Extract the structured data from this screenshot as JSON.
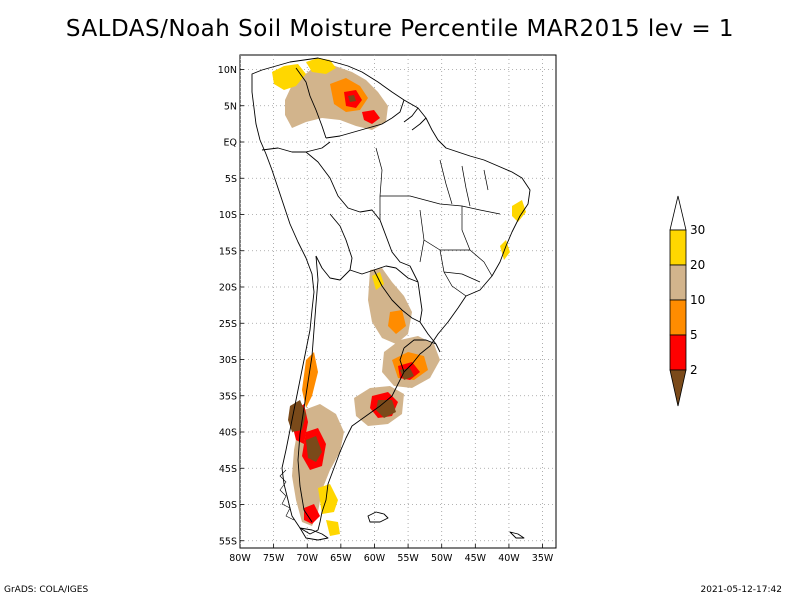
{
  "title": "SALDAS/Noah Soil Moisture Percentile MAR2015 lev = 1",
  "footer": {
    "left": "GrADS: COLA/IGES",
    "right": "2021-05-12-17:42"
  },
  "map": {
    "lon_range": [
      -80,
      -33
    ],
    "lat_range": [
      -56,
      12
    ],
    "lon_ticks": [
      {
        "value": -80,
        "label": "80W"
      },
      {
        "value": -75,
        "label": "75W"
      },
      {
        "value": -70,
        "label": "70W"
      },
      {
        "value": -65,
        "label": "65W"
      },
      {
        "value": -60,
        "label": "60W"
      },
      {
        "value": -55,
        "label": "55W"
      },
      {
        "value": -50,
        "label": "50W"
      },
      {
        "value": -45,
        "label": "45W"
      },
      {
        "value": -40,
        "label": "40W"
      },
      {
        "value": -35,
        "label": "35W"
      }
    ],
    "lat_ticks": [
      {
        "value": 10,
        "label": "10N"
      },
      {
        "value": 5,
        "label": "5N"
      },
      {
        "value": 0,
        "label": "EQ"
      },
      {
        "value": -5,
        "label": "5S"
      },
      {
        "value": -10,
        "label": "10S"
      },
      {
        "value": -15,
        "label": "15S"
      },
      {
        "value": -20,
        "label": "20S"
      },
      {
        "value": -25,
        "label": "25S"
      },
      {
        "value": -30,
        "label": "30S"
      },
      {
        "value": -35,
        "label": "35S"
      },
      {
        "value": -40,
        "label": "40S"
      },
      {
        "value": -45,
        "label": "45S"
      },
      {
        "value": -50,
        "label": "50S"
      },
      {
        "value": -55,
        "label": "55S"
      }
    ],
    "grid": true
  },
  "legend": {
    "colors": {
      "lt2": "#7a4a1a",
      "2to5": "#ff0000",
      "5to10": "#ff8c00",
      "10to20": "#d2b48c",
      "20to30": "#ffd700",
      "gt30": "#ffffff"
    },
    "labels": [
      "2",
      "5",
      "10",
      "20",
      "30"
    ]
  }
}
